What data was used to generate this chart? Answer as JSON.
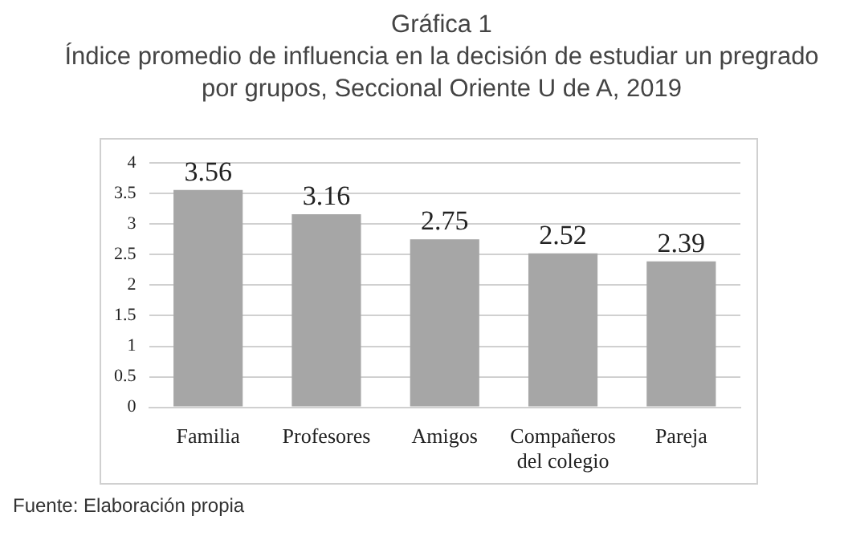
{
  "chart_data": {
    "type": "bar",
    "title": "Gráfica 1",
    "subtitle": "Índice promedio de influencia en la decisión de estudiar un pregrado por grupos, Seccional Oriente U de A, 2019",
    "categories": [
      "Familia",
      "Profesores",
      "Amigos",
      "Compañeros del colegio",
      "Pareja"
    ],
    "values": [
      3.56,
      3.16,
      2.75,
      2.52,
      2.39
    ],
    "color": "#a6a6a6",
    "ylim": [
      0,
      4
    ],
    "yticks": [
      0,
      0.5,
      1,
      1.5,
      2,
      2.5,
      3,
      3.5,
      4
    ],
    "grid": "y",
    "data_labels": true,
    "legend": false,
    "annotations": [
      "Fuente: Elaboración propia"
    ]
  }
}
